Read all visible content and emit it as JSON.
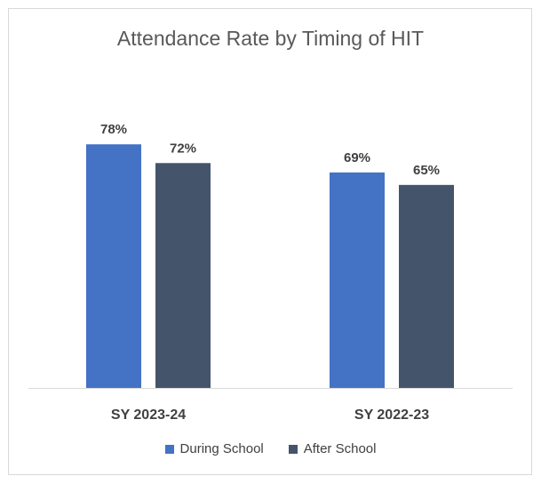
{
  "chart_data": {
    "type": "bar",
    "title": "Attendance Rate by Timing of HIT",
    "xlabel": "",
    "ylabel": "",
    "ylim": [
      0,
      100
    ],
    "categories": [
      "SY 2023-24",
      "SY 2022-23"
    ],
    "series": [
      {
        "name": "During School",
        "values": [
          78,
          69
        ],
        "labels": [
          "78%",
          "69%"
        ],
        "color": "#4472c4"
      },
      {
        "name": "After School",
        "values": [
          72,
          65
        ],
        "labels": [
          "72%",
          "65%"
        ],
        "color": "#44546a"
      }
    ],
    "legend": "bottom",
    "grid": false
  }
}
